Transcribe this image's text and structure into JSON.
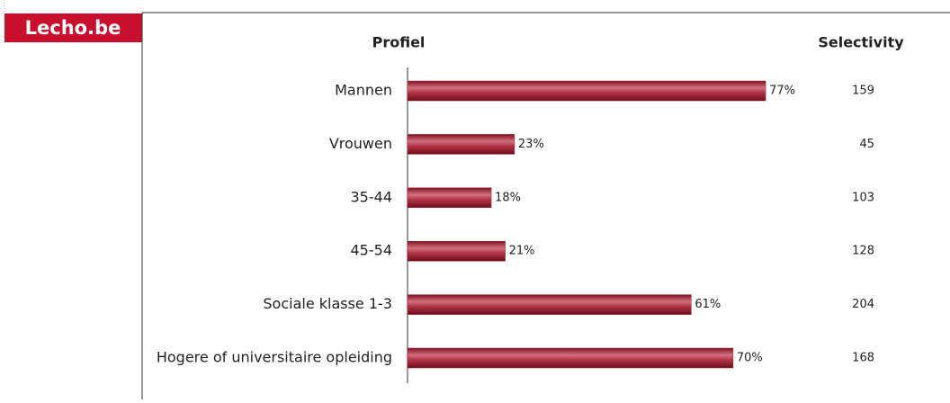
{
  "brand": "Lecho.be",
  "chart_data": {
    "type": "bar",
    "orientation": "horizontal",
    "title": "Profiel",
    "categories": [
      "Mannen",
      "Vrouwen",
      "35-44",
      "45-54",
      "Sociale klasse 1-3",
      "Hogere of universitaire opleiding"
    ],
    "values": [
      77,
      23,
      18,
      21,
      61,
      70
    ],
    "value_labels": [
      "77%",
      "23%",
      "18%",
      "21%",
      "61%",
      "70%"
    ],
    "color": "#9e1f33",
    "selectivity": {
      "title": "Selectivity",
      "values": [
        159,
        45,
        103,
        128,
        204,
        168
      ]
    }
  }
}
